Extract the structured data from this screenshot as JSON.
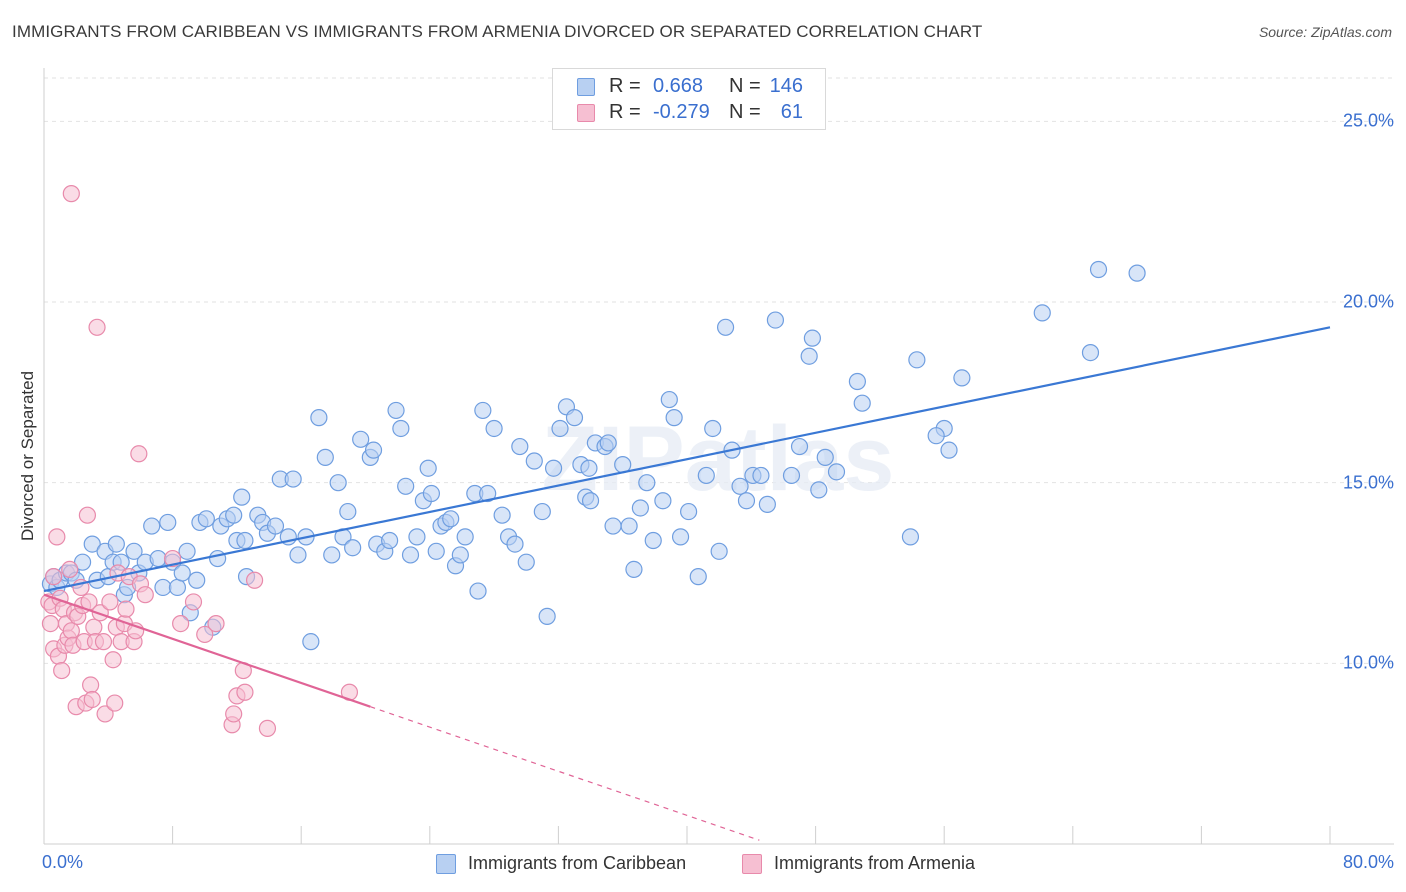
{
  "title": "IMMIGRANTS FROM CARIBBEAN VS IMMIGRANTS FROM ARMENIA DIVORCED OR SEPARATED CORRELATION CHART",
  "source": "Source: ZipAtlas.com",
  "watermark": "ZIPatlas",
  "legend": {
    "r_label": "R =",
    "n_label": "N =",
    "series": [
      {
        "r": "0.668",
        "n": "146",
        "fill": "#b8d0f2",
        "stroke": "#6f9ee0"
      },
      {
        "r": "-0.279",
        "n": "61",
        "fill": "#f6bfd2",
        "stroke": "#e88aab"
      }
    ]
  },
  "chart_data": {
    "type": "scatter",
    "title": "IMMIGRANTS FROM CARIBBEAN VS IMMIGRANTS FROM ARMENIA DIVORCED OR SEPARATED CORRELATION CHART",
    "xlabel": "",
    "ylabel": "Divorced or Separated",
    "xlim": [
      0,
      80
    ],
    "ylim": [
      5,
      26.2
    ],
    "x_tick_labels": [
      "0.0%",
      "80.0%"
    ],
    "y_ticks": [
      {
        "value": 10,
        "label": "10.0%"
      },
      {
        "value": 15,
        "label": "15.0%"
      },
      {
        "value": 20,
        "label": "20.0%"
      },
      {
        "value": 25,
        "label": "25.0%"
      }
    ],
    "grid": true,
    "legend_position": "top-center",
    "series": [
      {
        "name": "Immigrants from Caribbean",
        "color": "#6f9ee0",
        "fill": "#b8d0f2",
        "trend_color": "#3a78d4",
        "trend": {
          "x0": 0,
          "y0": 12.0,
          "x1": 80,
          "y1": 19.3
        },
        "points": [
          [
            0.4,
            12.2
          ],
          [
            0.6,
            12.4
          ],
          [
            0.8,
            12.1
          ],
          [
            1.0,
            12.3
          ],
          [
            1.4,
            12.5
          ],
          [
            1.7,
            12.5
          ],
          [
            2.0,
            12.3
          ],
          [
            2.4,
            12.8
          ],
          [
            3.0,
            13.3
          ],
          [
            3.3,
            12.3
          ],
          [
            3.8,
            13.1
          ],
          [
            4.0,
            12.4
          ],
          [
            4.3,
            12.8
          ],
          [
            4.5,
            13.3
          ],
          [
            4.8,
            12.8
          ],
          [
            5.0,
            11.9
          ],
          [
            5.2,
            12.1
          ],
          [
            5.6,
            13.1
          ],
          [
            5.9,
            12.5
          ],
          [
            6.3,
            12.8
          ],
          [
            6.7,
            13.8
          ],
          [
            7.1,
            12.9
          ],
          [
            7.4,
            12.1
          ],
          [
            7.7,
            13.9
          ],
          [
            8.0,
            12.8
          ],
          [
            8.3,
            12.1
          ],
          [
            8.6,
            12.5
          ],
          [
            8.9,
            13.1
          ],
          [
            9.1,
            11.4
          ],
          [
            9.5,
            12.3
          ],
          [
            9.7,
            13.9
          ],
          [
            10.1,
            14.0
          ],
          [
            10.5,
            11.0
          ],
          [
            10.8,
            12.9
          ],
          [
            11.0,
            13.8
          ],
          [
            11.4,
            14.0
          ],
          [
            11.8,
            14.1
          ],
          [
            12.0,
            13.4
          ],
          [
            12.3,
            14.6
          ],
          [
            12.5,
            13.4
          ],
          [
            12.6,
            12.4
          ],
          [
            13.3,
            14.1
          ],
          [
            13.6,
            13.9
          ],
          [
            13.9,
            13.6
          ],
          [
            14.4,
            13.8
          ],
          [
            14.7,
            15.1
          ],
          [
            15.2,
            13.5
          ],
          [
            15.5,
            15.1
          ],
          [
            15.8,
            13.0
          ],
          [
            16.3,
            13.5
          ],
          [
            16.6,
            10.6
          ],
          [
            17.1,
            16.8
          ],
          [
            17.5,
            15.7
          ],
          [
            17.9,
            13.0
          ],
          [
            18.3,
            15.0
          ],
          [
            18.6,
            13.5
          ],
          [
            18.9,
            14.2
          ],
          [
            19.2,
            13.2
          ],
          [
            19.7,
            16.2
          ],
          [
            20.3,
            15.7
          ],
          [
            20.5,
            15.9
          ],
          [
            20.7,
            13.3
          ],
          [
            21.2,
            13.1
          ],
          [
            21.5,
            13.4
          ],
          [
            21.9,
            17.0
          ],
          [
            22.2,
            16.5
          ],
          [
            22.5,
            14.9
          ],
          [
            22.8,
            13.0
          ],
          [
            23.2,
            13.5
          ],
          [
            23.6,
            14.5
          ],
          [
            23.9,
            15.4
          ],
          [
            24.1,
            14.7
          ],
          [
            24.4,
            13.1
          ],
          [
            24.7,
            13.8
          ],
          [
            25.0,
            13.9
          ],
          [
            25.3,
            14.0
          ],
          [
            25.6,
            12.7
          ],
          [
            25.9,
            13.0
          ],
          [
            26.2,
            13.5
          ],
          [
            26.8,
            14.7
          ],
          [
            27.0,
            12.0
          ],
          [
            27.3,
            17.0
          ],
          [
            27.6,
            14.7
          ],
          [
            28.0,
            16.5
          ],
          [
            28.5,
            14.1
          ],
          [
            28.9,
            13.5
          ],
          [
            29.3,
            13.3
          ],
          [
            29.6,
            16.0
          ],
          [
            30.0,
            12.8
          ],
          [
            30.5,
            15.6
          ],
          [
            31.0,
            14.2
          ],
          [
            31.3,
            11.3
          ],
          [
            31.7,
            15.4
          ],
          [
            32.1,
            16.5
          ],
          [
            32.5,
            17.1
          ],
          [
            33.0,
            16.8
          ],
          [
            33.4,
            15.5
          ],
          [
            33.7,
            14.6
          ],
          [
            34.0,
            14.5
          ],
          [
            34.3,
            16.1
          ],
          [
            34.9,
            16.0
          ],
          [
            35.1,
            16.1
          ],
          [
            35.4,
            13.8
          ],
          [
            36.0,
            15.5
          ],
          [
            36.4,
            13.8
          ],
          [
            36.7,
            12.6
          ],
          [
            37.1,
            14.3
          ],
          [
            37.5,
            15.0
          ],
          [
            37.9,
            13.4
          ],
          [
            38.5,
            14.5
          ],
          [
            38.9,
            17.3
          ],
          [
            39.2,
            16.8
          ],
          [
            39.6,
            13.5
          ],
          [
            40.1,
            14.2
          ],
          [
            40.7,
            12.4
          ],
          [
            41.2,
            15.2
          ],
          [
            41.6,
            16.5
          ],
          [
            42.0,
            13.1
          ],
          [
            42.4,
            19.3
          ],
          [
            42.8,
            15.9
          ],
          [
            43.3,
            14.9
          ],
          [
            43.7,
            14.5
          ],
          [
            44.1,
            15.2
          ],
          [
            44.6,
            15.2
          ],
          [
            45.0,
            14.4
          ],
          [
            45.5,
            19.5
          ],
          [
            46.5,
            15.2
          ],
          [
            47.0,
            16.0
          ],
          [
            47.6,
            18.5
          ],
          [
            47.8,
            19.0
          ],
          [
            48.2,
            14.8
          ],
          [
            48.6,
            15.7
          ],
          [
            49.3,
            15.3
          ],
          [
            50.6,
            17.8
          ],
          [
            50.9,
            17.2
          ],
          [
            53.9,
            13.5
          ],
          [
            54.3,
            18.4
          ],
          [
            56.0,
            16.5
          ],
          [
            56.3,
            15.9
          ],
          [
            57.1,
            17.9
          ],
          [
            62.1,
            19.7
          ],
          [
            65.1,
            18.6
          ],
          [
            65.6,
            20.9
          ],
          [
            68.0,
            20.8
          ],
          [
            55.5,
            16.3
          ],
          [
            33.9,
            15.4
          ]
        ]
      },
      {
        "name": "Immigrants from Armenia",
        "color": "#e88aab",
        "fill": "#f6bfd2",
        "trend_color": "#e06496",
        "trend": {
          "x0": 0,
          "y0": 11.9,
          "x1": 20.3,
          "y1": 8.8,
          "dash_to_x": 44.5
        },
        "points": [
          [
            0.3,
            11.7
          ],
          [
            0.4,
            11.1
          ],
          [
            0.5,
            11.6
          ],
          [
            0.6,
            10.4
          ],
          [
            0.6,
            12.4
          ],
          [
            0.8,
            13.5
          ],
          [
            0.9,
            10.2
          ],
          [
            1.0,
            11.8
          ],
          [
            1.1,
            9.8
          ],
          [
            1.2,
            11.5
          ],
          [
            1.3,
            10.5
          ],
          [
            1.4,
            11.1
          ],
          [
            1.5,
            10.7
          ],
          [
            1.6,
            12.6
          ],
          [
            1.7,
            10.9
          ],
          [
            1.7,
            23.0
          ],
          [
            1.8,
            10.5
          ],
          [
            1.9,
            11.4
          ],
          [
            2.0,
            8.8
          ],
          [
            2.1,
            11.3
          ],
          [
            2.3,
            12.1
          ],
          [
            2.4,
            11.6
          ],
          [
            2.5,
            10.6
          ],
          [
            2.6,
            8.9
          ],
          [
            2.7,
            14.1
          ],
          [
            2.8,
            11.7
          ],
          [
            2.9,
            9.4
          ],
          [
            3.0,
            9.0
          ],
          [
            3.1,
            11.0
          ],
          [
            3.2,
            10.6
          ],
          [
            3.3,
            19.3
          ],
          [
            3.5,
            11.4
          ],
          [
            3.7,
            10.6
          ],
          [
            3.8,
            8.6
          ],
          [
            4.1,
            11.7
          ],
          [
            4.3,
            10.1
          ],
          [
            4.4,
            8.9
          ],
          [
            4.5,
            11.0
          ],
          [
            4.6,
            12.5
          ],
          [
            4.8,
            10.6
          ],
          [
            5.0,
            11.1
          ],
          [
            5.1,
            11.5
          ],
          [
            5.3,
            12.4
          ],
          [
            5.6,
            10.6
          ],
          [
            5.7,
            10.9
          ],
          [
            5.9,
            15.8
          ],
          [
            6.0,
            12.2
          ],
          [
            6.3,
            11.9
          ],
          [
            8.0,
            12.9
          ],
          [
            8.5,
            11.1
          ],
          [
            9.3,
            11.7
          ],
          [
            10.0,
            10.8
          ],
          [
            10.7,
            11.1
          ],
          [
            11.7,
            8.3
          ],
          [
            11.8,
            8.6
          ],
          [
            12.0,
            9.1
          ],
          [
            12.4,
            9.8
          ],
          [
            12.5,
            9.2
          ],
          [
            13.1,
            12.3
          ],
          [
            13.9,
            8.2
          ],
          [
            19.0,
            9.2
          ]
        ]
      }
    ]
  }
}
